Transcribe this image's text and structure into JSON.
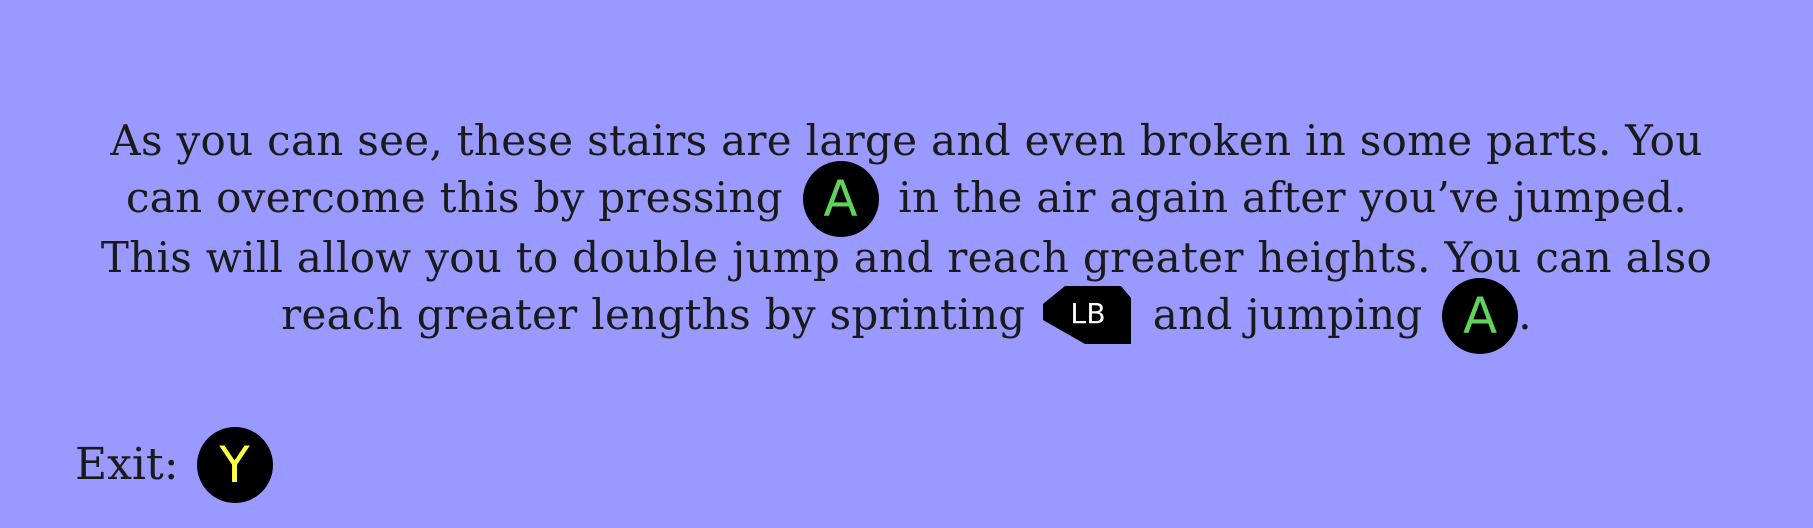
{
  "tutorial": {
    "part1": "As you can see, these stairs are large and even broken in some parts. You can overcome this by pressing",
    "part2": "in the air again after you’ve jumped. This will allow you to double jump and reach greater heights. You can also reach greater lengths by sprinting",
    "part3": "and jumping",
    "part4": ".",
    "button_a_label": "A",
    "button_lb_label": "LB",
    "button_a2_label": "A"
  },
  "exit": {
    "label": "Exit:",
    "button_label": "Y"
  },
  "colors": {
    "background": "#9999ff",
    "button_a": "#5fd35a",
    "button_y": "#ffff44",
    "button_bg": "#000000"
  },
  "icons": {
    "button_a": "a-button-icon",
    "button_lb": "lb-button-icon",
    "button_y": "y-button-icon"
  }
}
